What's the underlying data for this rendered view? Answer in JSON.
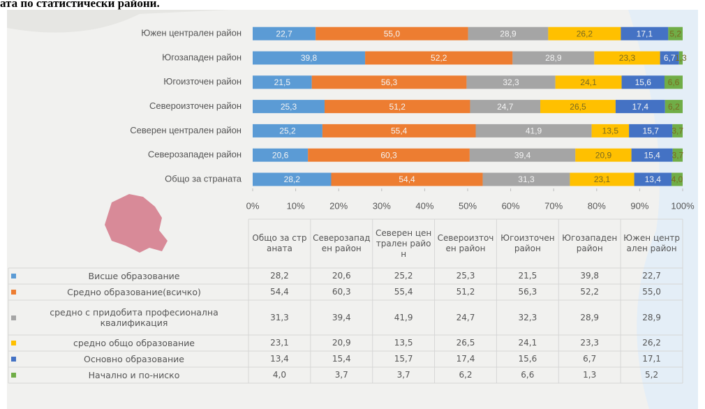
{
  "chart_data": {
    "type": "bar",
    "orientation": "horizontal",
    "stacking": "percent",
    "title": "ата по статистически райони.",
    "categories": [
      "Общо за страната",
      "Северозападен район",
      "Северен централен район",
      "Североизточен район",
      "Югоизточен район",
      "Югозападен район",
      "Южен централен район"
    ],
    "series": [
      {
        "name": "Висше образование",
        "color": "#5b9bd5",
        "values": [
          28.2,
          20.6,
          25.2,
          25.3,
          21.5,
          39.8,
          22.7
        ],
        "value_labels": [
          "28,2",
          "20,6",
          "25,2",
          "25,3",
          "21,5",
          "39,8",
          "22,7"
        ]
      },
      {
        "name": "Средно образование(всичко)",
        "color": "#ed7d31",
        "values": [
          54.4,
          60.3,
          55.4,
          51.2,
          56.3,
          52.2,
          55.0
        ],
        "value_labels": [
          "54,4",
          "60,3",
          "55,4",
          "51,2",
          "56,3",
          "52,2",
          "55,0"
        ]
      },
      {
        "name": "средно с придобита професионална квалификация",
        "color": "#a5a5a5",
        "values": [
          31.3,
          39.4,
          41.9,
          24.7,
          32.3,
          28.9,
          28.9
        ],
        "value_labels": [
          "31,3",
          "39,4",
          "41,9",
          "24,7",
          "32,3",
          "28,9",
          "28,9"
        ]
      },
      {
        "name": "средно общо образование",
        "color": "#ffc000",
        "values": [
          23.1,
          20.9,
          13.5,
          26.5,
          24.1,
          23.3,
          26.2
        ],
        "value_labels": [
          "23,1",
          "20,9",
          "13,5",
          "26,5",
          "24,1",
          "23,3",
          "26,2"
        ]
      },
      {
        "name": "Основно образование",
        "color": "#4472c4",
        "values": [
          13.4,
          15.4,
          15.7,
          17.4,
          15.6,
          6.7,
          17.1
        ],
        "value_labels": [
          "13,4",
          "15,4",
          "15,7",
          "17,4",
          "15,6",
          "6,7",
          "17,1"
        ]
      },
      {
        "name": "Начално и по-ниско",
        "color": "#70ad47",
        "values": [
          4.0,
          3.7,
          3.7,
          6.2,
          6.6,
          1.3,
          5.2
        ],
        "value_labels": [
          "4,0",
          "3,7",
          "3,7",
          "6,2",
          "6,6",
          "1,3",
          "5,2"
        ]
      }
    ],
    "xlim": [
      0,
      100
    ],
    "xticks": [
      {
        "value": 0,
        "label": "0%"
      },
      {
        "value": 10,
        "label": "10%"
      },
      {
        "value": 20,
        "label": "20%"
      },
      {
        "value": 30,
        "label": "30%"
      },
      {
        "value": 40,
        "label": "40%"
      },
      {
        "value": 50,
        "label": "50%"
      },
      {
        "value": 60,
        "label": "60%"
      },
      {
        "value": 70,
        "label": "70%"
      },
      {
        "value": 80,
        "label": "80%"
      },
      {
        "value": 90,
        "label": "90%"
      },
      {
        "value": 100,
        "label": "100%"
      }
    ],
    "data_table": true
  }
}
